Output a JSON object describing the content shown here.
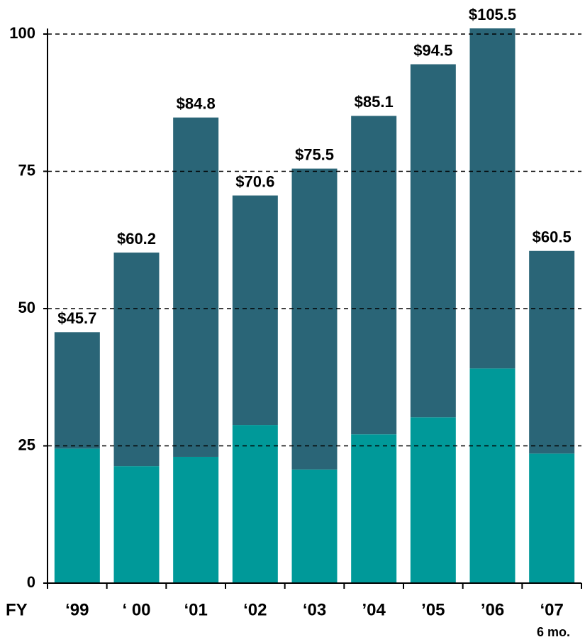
{
  "chart_data": {
    "type": "stacked_bar",
    "categories": [
      "‘99",
      "‘ 00",
      "‘01",
      "‘02",
      "‘03",
      "’04",
      "’05",
      "’06",
      "‘07"
    ],
    "series": [
      {
        "color": "#009999",
        "values": [
          24.5,
          21.3,
          23.0,
          28.8,
          20.7,
          27.1,
          30.2,
          39.1,
          23.6
        ]
      },
      {
        "color": "#2a6577",
        "values": [
          21.2,
          38.9,
          61.8,
          41.8,
          54.8,
          58.0,
          64.3,
          66.4,
          36.9
        ]
      }
    ],
    "totals": [
      45.7,
      60.2,
      84.8,
      70.6,
      75.5,
      85.1,
      94.5,
      105.5,
      60.5
    ],
    "total_labels": [
      "$45.7",
      "$60.2",
      "$84.8",
      "$70.6",
      "$75.5",
      "$85.1",
      "$94.5",
      "$105.5",
      "$60.5"
    ],
    "x_axis_label": "FY",
    "annotation": "6 mo.",
    "ylim": [
      0,
      101
    ],
    "yticks": [
      0,
      25,
      50,
      75,
      100
    ],
    "grid": true
  }
}
